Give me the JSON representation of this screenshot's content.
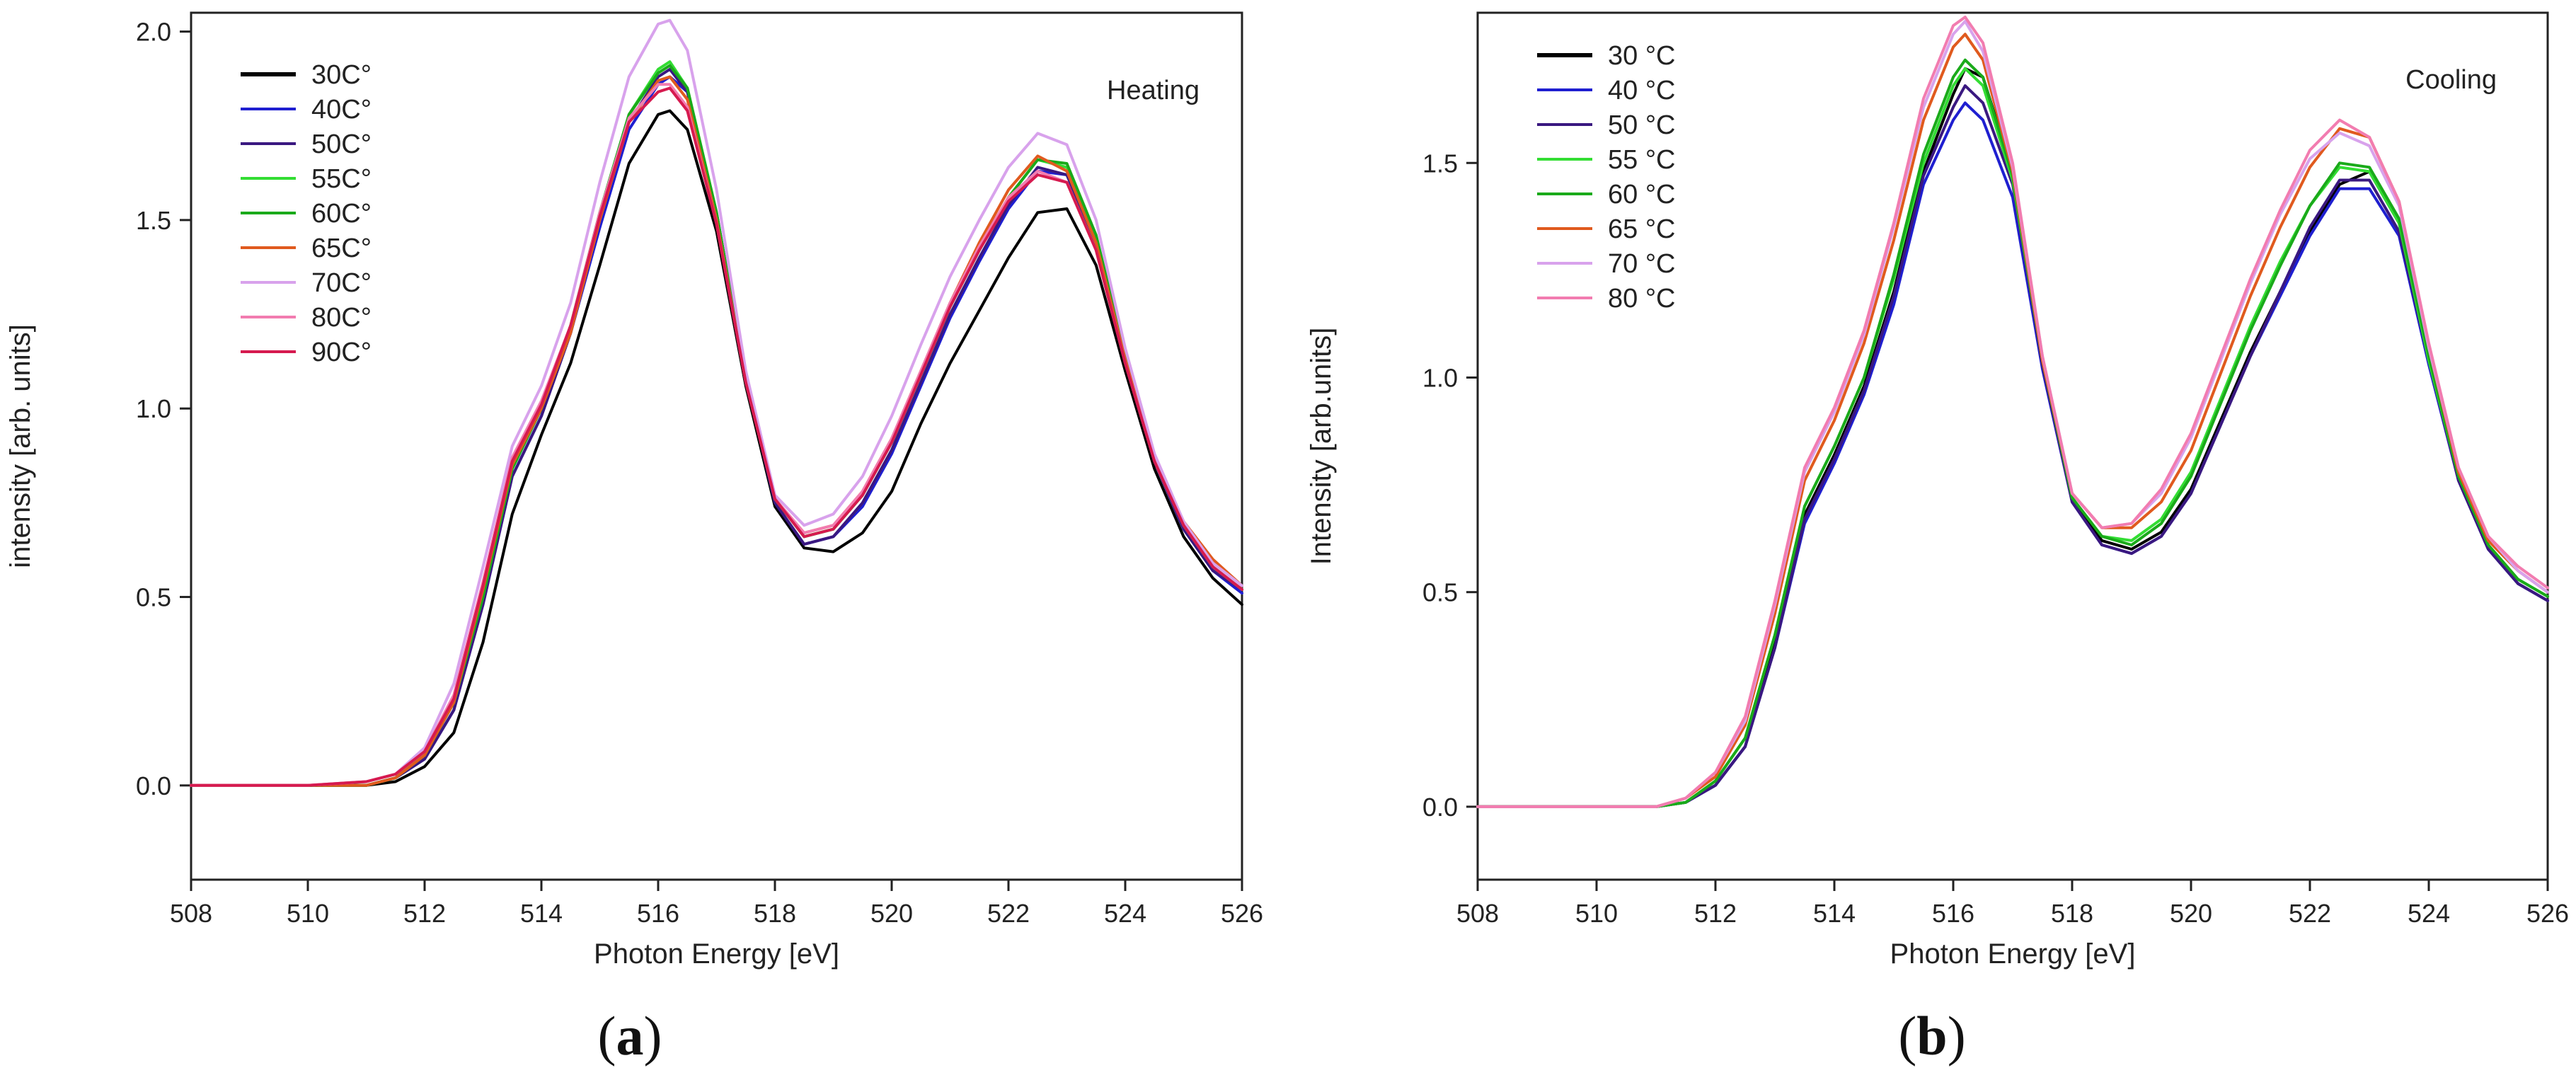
{
  "chart_data": [
    {
      "type": "line",
      "panel": "a",
      "caption_letter": "a",
      "annotation": "Heating",
      "xlabel": "Photon Energy [eV]",
      "ylabel": "intensity [arb. units]",
      "xlim": [
        508,
        526
      ],
      "ylim": [
        -0.25,
        2.05
      ],
      "xticks": [
        508,
        510,
        512,
        514,
        516,
        518,
        520,
        522,
        524,
        526
      ],
      "yticks": [
        0.0,
        0.5,
        1.0,
        1.5,
        2.0
      ],
      "ytick_labels": [
        "0.0",
        "0.5",
        "1.0",
        "1.5",
        "2.0"
      ],
      "legend_position": "top-left",
      "x": [
        508,
        509,
        510,
        511,
        511.5,
        512,
        512.5,
        513,
        513.5,
        514,
        514.5,
        515,
        515.5,
        516,
        516.2,
        516.5,
        517,
        517.5,
        518,
        518.5,
        519,
        519.5,
        520,
        520.5,
        521,
        521.5,
        522,
        522.5,
        523,
        523.5,
        524,
        524.5,
        525,
        525.5,
        526
      ],
      "series": [
        {
          "name": "30C°",
          "color": "#000000",
          "values": [
            0.0,
            0.0,
            0.0,
            0.0,
            0.01,
            0.05,
            0.14,
            0.38,
            0.72,
            0.93,
            1.12,
            1.38,
            1.65,
            1.78,
            1.79,
            1.74,
            1.47,
            1.06,
            0.74,
            0.63,
            0.62,
            0.67,
            0.78,
            0.96,
            1.12,
            1.26,
            1.4,
            1.52,
            1.53,
            1.38,
            1.1,
            0.84,
            0.66,
            0.55,
            0.48
          ]
        },
        {
          "name": "40C°",
          "color": "#1f1fd0",
          "values": [
            0.0,
            0.0,
            0.0,
            0.0,
            0.02,
            0.07,
            0.2,
            0.48,
            0.82,
            0.98,
            1.2,
            1.48,
            1.74,
            1.86,
            1.88,
            1.84,
            1.52,
            1.08,
            0.75,
            0.64,
            0.66,
            0.74,
            0.88,
            1.06,
            1.24,
            1.39,
            1.53,
            1.63,
            1.62,
            1.44,
            1.13,
            0.86,
            0.68,
            0.57,
            0.51
          ]
        },
        {
          "name": "50C°",
          "color": "#3a1880",
          "values": [
            0.0,
            0.0,
            0.0,
            0.0,
            0.02,
            0.07,
            0.2,
            0.48,
            0.82,
            0.98,
            1.2,
            1.5,
            1.76,
            1.88,
            1.9,
            1.84,
            1.52,
            1.08,
            0.75,
            0.64,
            0.66,
            0.75,
            0.89,
            1.07,
            1.25,
            1.4,
            1.54,
            1.64,
            1.62,
            1.44,
            1.13,
            0.86,
            0.68,
            0.57,
            0.52
          ]
        },
        {
          "name": "55C°",
          "color": "#33dd33",
          "values": [
            0.0,
            0.0,
            0.0,
            0.0,
            0.02,
            0.08,
            0.22,
            0.5,
            0.84,
            1.0,
            1.22,
            1.52,
            1.78,
            1.9,
            1.92,
            1.85,
            1.52,
            1.08,
            0.76,
            0.66,
            0.68,
            0.77,
            0.91,
            1.09,
            1.27,
            1.42,
            1.56,
            1.66,
            1.64,
            1.46,
            1.14,
            0.87,
            0.69,
            0.58,
            0.52
          ]
        },
        {
          "name": "60C°",
          "color": "#1aaa1a",
          "values": [
            0.0,
            0.0,
            0.0,
            0.0,
            0.02,
            0.08,
            0.22,
            0.5,
            0.84,
            1.0,
            1.22,
            1.52,
            1.78,
            1.89,
            1.91,
            1.85,
            1.52,
            1.08,
            0.76,
            0.66,
            0.68,
            0.77,
            0.91,
            1.09,
            1.27,
            1.42,
            1.56,
            1.66,
            1.65,
            1.46,
            1.14,
            0.87,
            0.69,
            0.58,
            0.52
          ]
        },
        {
          "name": "65C°",
          "color": "#e05a1e",
          "values": [
            0.0,
            0.0,
            0.0,
            0.0,
            0.02,
            0.08,
            0.22,
            0.52,
            0.85,
            1.0,
            1.2,
            1.5,
            1.76,
            1.87,
            1.88,
            1.82,
            1.5,
            1.07,
            0.76,
            0.67,
            0.69,
            0.78,
            0.92,
            1.1,
            1.28,
            1.44,
            1.58,
            1.67,
            1.63,
            1.44,
            1.13,
            0.87,
            0.7,
            0.6,
            0.53
          ]
        },
        {
          "name": "70C°",
          "color": "#d8a2ec",
          "values": [
            0.0,
            0.0,
            0.0,
            0.01,
            0.03,
            0.1,
            0.27,
            0.58,
            0.9,
            1.06,
            1.28,
            1.6,
            1.88,
            2.02,
            2.03,
            1.95,
            1.58,
            1.1,
            0.77,
            0.69,
            0.72,
            0.82,
            0.98,
            1.17,
            1.35,
            1.5,
            1.64,
            1.73,
            1.7,
            1.5,
            1.16,
            0.88,
            0.7,
            0.59,
            0.53
          ]
        },
        {
          "name": "80C°",
          "color": "#f27cb0",
          "values": [
            0.0,
            0.0,
            0.0,
            0.01,
            0.03,
            0.09,
            0.24,
            0.54,
            0.87,
            1.02,
            1.22,
            1.52,
            1.77,
            1.86,
            1.86,
            1.8,
            1.49,
            1.07,
            0.76,
            0.67,
            0.69,
            0.78,
            0.92,
            1.1,
            1.28,
            1.43,
            1.56,
            1.63,
            1.6,
            1.42,
            1.12,
            0.86,
            0.69,
            0.58,
            0.52
          ]
        },
        {
          "name": "90C°",
          "color": "#d61a4f",
          "values": [
            0.0,
            0.0,
            0.0,
            0.01,
            0.03,
            0.09,
            0.23,
            0.53,
            0.86,
            1.01,
            1.22,
            1.51,
            1.76,
            1.84,
            1.85,
            1.79,
            1.49,
            1.07,
            0.76,
            0.66,
            0.68,
            0.77,
            0.91,
            1.09,
            1.27,
            1.42,
            1.55,
            1.62,
            1.6,
            1.42,
            1.12,
            0.86,
            0.69,
            0.58,
            0.52
          ]
        }
      ]
    },
    {
      "type": "line",
      "panel": "b",
      "caption_letter": "b",
      "annotation": "Cooling",
      "xlabel": "Photon Energy [eV]",
      "ylabel": "Intensity [arb.units]",
      "xlim": [
        508,
        526
      ],
      "ylim": [
        -0.17,
        1.85
      ],
      "xticks": [
        508,
        510,
        512,
        514,
        516,
        518,
        520,
        522,
        524,
        526
      ],
      "yticks": [
        0.0,
        0.5,
        1.0,
        1.5
      ],
      "ytick_labels": [
        "0.0",
        "0.5",
        "1.0",
        "1.5"
      ],
      "legend_position": "top-left",
      "x": [
        508,
        509,
        510,
        511,
        511.5,
        512,
        512.5,
        513,
        513.5,
        514,
        514.5,
        515,
        515.5,
        516,
        516.2,
        516.5,
        517,
        517.5,
        518,
        518.5,
        519,
        519.5,
        520,
        520.5,
        521,
        521.5,
        522,
        522.5,
        523,
        523.5,
        524,
        524.5,
        525,
        525.5,
        526
      ],
      "series": [
        {
          "name": "30 °C",
          "color": "#000000",
          "values": [
            0.0,
            0.0,
            0.0,
            0.0,
            0.01,
            0.05,
            0.14,
            0.38,
            0.68,
            0.82,
            0.98,
            1.2,
            1.48,
            1.66,
            1.72,
            1.7,
            1.48,
            1.04,
            0.72,
            0.62,
            0.6,
            0.64,
            0.74,
            0.9,
            1.06,
            1.2,
            1.34,
            1.45,
            1.48,
            1.36,
            1.04,
            0.76,
            0.6,
            0.52,
            0.48
          ]
        },
        {
          "name": "40 °C",
          "color": "#1f1fd0",
          "values": [
            0.0,
            0.0,
            0.0,
            0.0,
            0.01,
            0.05,
            0.14,
            0.37,
            0.66,
            0.8,
            0.96,
            1.17,
            1.45,
            1.6,
            1.64,
            1.6,
            1.42,
            1.02,
            0.71,
            0.61,
            0.59,
            0.63,
            0.73,
            0.89,
            1.05,
            1.19,
            1.33,
            1.44,
            1.44,
            1.33,
            1.03,
            0.76,
            0.6,
            0.52,
            0.48
          ]
        },
        {
          "name": "50 °C",
          "color": "#3a1880",
          "values": [
            0.0,
            0.0,
            0.0,
            0.0,
            0.01,
            0.05,
            0.14,
            0.37,
            0.67,
            0.81,
            0.97,
            1.19,
            1.47,
            1.63,
            1.68,
            1.64,
            1.45,
            1.03,
            0.71,
            0.61,
            0.59,
            0.63,
            0.73,
            0.89,
            1.05,
            1.2,
            1.35,
            1.46,
            1.46,
            1.34,
            1.04,
            0.76,
            0.6,
            0.52,
            0.48
          ]
        },
        {
          "name": "55 °C",
          "color": "#33dd33",
          "values": [
            0.0,
            0.0,
            0.0,
            0.0,
            0.01,
            0.06,
            0.16,
            0.4,
            0.7,
            0.84,
            1.0,
            1.23,
            1.5,
            1.68,
            1.72,
            1.68,
            1.46,
            1.04,
            0.72,
            0.63,
            0.62,
            0.67,
            0.78,
            0.95,
            1.12,
            1.27,
            1.4,
            1.49,
            1.48,
            1.36,
            1.04,
            0.77,
            0.61,
            0.53,
            0.49
          ]
        },
        {
          "name": "60 °C",
          "color": "#1aaa1a",
          "values": [
            0.0,
            0.0,
            0.0,
            0.0,
            0.01,
            0.06,
            0.16,
            0.4,
            0.7,
            0.84,
            1.0,
            1.24,
            1.52,
            1.7,
            1.74,
            1.7,
            1.47,
            1.04,
            0.72,
            0.63,
            0.61,
            0.66,
            0.77,
            0.94,
            1.11,
            1.26,
            1.4,
            1.5,
            1.49,
            1.37,
            1.05,
            0.77,
            0.61,
            0.53,
            0.49
          ]
        },
        {
          "name": "65 °C",
          "color": "#e05a1e",
          "values": [
            0.0,
            0.0,
            0.0,
            0.0,
            0.02,
            0.07,
            0.19,
            0.45,
            0.76,
            0.9,
            1.08,
            1.32,
            1.6,
            1.77,
            1.8,
            1.74,
            1.48,
            1.04,
            0.73,
            0.65,
            0.65,
            0.71,
            0.83,
            1.01,
            1.19,
            1.35,
            1.49,
            1.58,
            1.56,
            1.41,
            1.07,
            0.78,
            0.62,
            0.55,
            0.5
          ]
        },
        {
          "name": "70 °C",
          "color": "#d8a2ec",
          "values": [
            0.0,
            0.0,
            0.0,
            0.0,
            0.02,
            0.08,
            0.2,
            0.47,
            0.78,
            0.92,
            1.1,
            1.35,
            1.63,
            1.8,
            1.83,
            1.76,
            1.49,
            1.05,
            0.73,
            0.65,
            0.66,
            0.73,
            0.86,
            1.04,
            1.22,
            1.38,
            1.51,
            1.57,
            1.54,
            1.4,
            1.07,
            0.79,
            0.63,
            0.55,
            0.5
          ]
        },
        {
          "name": "80 °C",
          "color": "#f27cb0",
          "values": [
            0.0,
            0.0,
            0.0,
            0.0,
            0.02,
            0.08,
            0.21,
            0.48,
            0.79,
            0.93,
            1.11,
            1.36,
            1.65,
            1.82,
            1.84,
            1.78,
            1.5,
            1.05,
            0.73,
            0.65,
            0.66,
            0.74,
            0.87,
            1.05,
            1.23,
            1.39,
            1.53,
            1.6,
            1.56,
            1.41,
            1.08,
            0.79,
            0.63,
            0.56,
            0.51
          ]
        }
      ]
    }
  ]
}
